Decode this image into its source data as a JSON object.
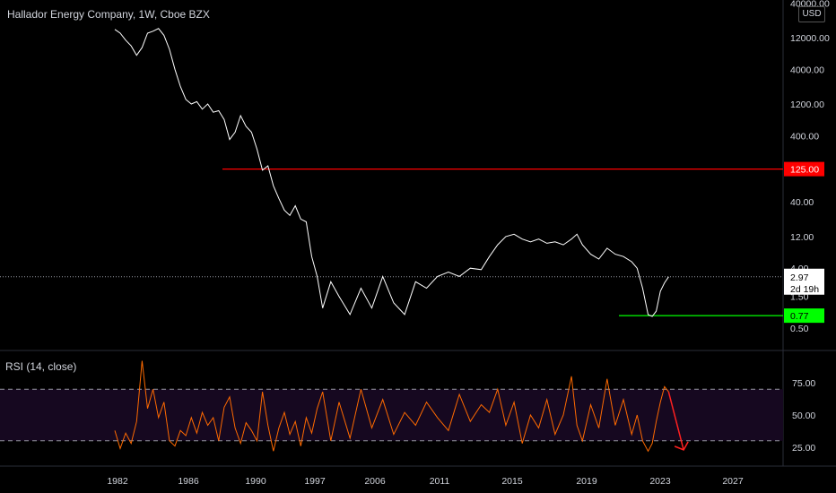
{
  "title": "Hallador Energy Company, 1W, Cboe BZX",
  "rsi_label": "RSI (14, close)",
  "currency": "USD",
  "colors": {
    "background": "#000000",
    "price_line": "#ffffff",
    "resistance": "#ff0000",
    "support": "#00ff00",
    "rsi_line": "#ff6a00",
    "rsi_band": "#160820",
    "arrow": "#ff2020"
  },
  "chart_data": [
    {
      "type": "line",
      "name": "price",
      "scale": "log",
      "y_tick_labels": [
        "40000.00",
        "12000.00",
        "4000.00",
        "1200.00",
        "400.00",
        "125.00",
        "40.00",
        "12.00",
        "4.00",
        "2.97",
        "1.50",
        "0.77",
        "0.50"
      ],
      "x_tick_labels": [
        "1982",
        "1986",
        "1990",
        "1997",
        "2006",
        "2011",
        "2015",
        "2019",
        "2023",
        "2027"
      ],
      "current_price": "2.97",
      "countdown": "2d 19h",
      "levels": [
        {
          "label": "125.00",
          "value": 125,
          "color": "#ff0000"
        },
        {
          "label": "0.77",
          "value": 0.77,
          "color": "#00ff00"
        }
      ],
      "points": [
        [
          1981.8,
          16000
        ],
        [
          1982.2,
          14000
        ],
        [
          1982.6,
          11000
        ],
        [
          1983.0,
          9000
        ],
        [
          1983.4,
          6500
        ],
        [
          1983.8,
          8500
        ],
        [
          1984.2,
          14000
        ],
        [
          1984.6,
          15000
        ],
        [
          1985.0,
          16500
        ],
        [
          1985.4,
          13000
        ],
        [
          1985.8,
          8000
        ],
        [
          1986.2,
          4000
        ],
        [
          1986.6,
          2200
        ],
        [
          1987.0,
          1400
        ],
        [
          1987.4,
          1200
        ],
        [
          1987.8,
          1300
        ],
        [
          1988.2,
          1000
        ],
        [
          1988.6,
          1200
        ],
        [
          1989.0,
          900
        ],
        [
          1989.4,
          950
        ],
        [
          1989.8,
          700
        ],
        [
          1990.2,
          350
        ],
        [
          1990.6,
          450
        ],
        [
          1991.0,
          800
        ],
        [
          1991.4,
          550
        ],
        [
          1991.8,
          450
        ],
        [
          1992.2,
          250
        ],
        [
          1992.6,
          120
        ],
        [
          1993.0,
          140
        ],
        [
          1993.4,
          70
        ],
        [
          1993.8,
          45
        ],
        [
          1994.2,
          30
        ],
        [
          1994.6,
          25
        ],
        [
          1995.0,
          35
        ],
        [
          1995.4,
          22
        ],
        [
          1995.8,
          20
        ],
        [
          1996.2,
          6
        ],
        [
          1996.6,
          3
        ],
        [
          1997.0,
          1.0
        ],
        [
          1997.6,
          2.5
        ],
        [
          1998.2,
          1.5
        ],
        [
          1999.0,
          0.8
        ],
        [
          1999.8,
          2.0
        ],
        [
          2000.6,
          1.0
        ],
        [
          2001.4,
          3.0
        ],
        [
          2002.2,
          1.2
        ],
        [
          2003.0,
          0.8
        ],
        [
          2003.8,
          2.5
        ],
        [
          2004.6,
          2.0
        ],
        [
          2005.4,
          3.0
        ],
        [
          2006.2,
          3.5
        ],
        [
          2007.0,
          3.0
        ],
        [
          2007.8,
          4.0
        ],
        [
          2008.6,
          3.8
        ],
        [
          2009.2,
          6.0
        ],
        [
          2009.8,
          9.0
        ],
        [
          2010.4,
          12.0
        ],
        [
          2011.0,
          13.0
        ],
        [
          2011.6,
          11.0
        ],
        [
          2012.2,
          10.0
        ],
        [
          2012.8,
          11.0
        ],
        [
          2013.4,
          9.5
        ],
        [
          2014.0,
          10.0
        ],
        [
          2014.6,
          9.0
        ],
        [
          2015.2,
          11.0
        ],
        [
          2015.6,
          13.0
        ],
        [
          2016.0,
          9.0
        ],
        [
          2016.6,
          6.5
        ],
        [
          2017.2,
          5.5
        ],
        [
          2017.8,
          8.0
        ],
        [
          2018.4,
          6.5
        ],
        [
          2019.0,
          6.0
        ],
        [
          2019.6,
          5.0
        ],
        [
          2020.0,
          4.0
        ],
        [
          2020.4,
          2.0
        ],
        [
          2020.8,
          0.8
        ],
        [
          2021.1,
          0.75
        ],
        [
          2021.4,
          0.9
        ],
        [
          2021.7,
          1.8
        ],
        [
          2022.0,
          2.4
        ],
        [
          2022.3,
          2.97
        ]
      ]
    },
    {
      "type": "line",
      "name": "RSI",
      "y_tick_labels": [
        "75.00",
        "50.00",
        "25.00"
      ],
      "ylim": [
        0,
        100
      ],
      "bands": [
        70,
        30
      ],
      "points": [
        [
          1981.8,
          38
        ],
        [
          1982.2,
          24
        ],
        [
          1982.6,
          36
        ],
        [
          1983.0,
          28
        ],
        [
          1983.4,
          45
        ],
        [
          1983.8,
          92
        ],
        [
          1984.2,
          55
        ],
        [
          1984.6,
          70
        ],
        [
          1985.0,
          48
        ],
        [
          1985.4,
          60
        ],
        [
          1985.8,
          30
        ],
        [
          1986.2,
          26
        ],
        [
          1986.6,
          38
        ],
        [
          1987.0,
          34
        ],
        [
          1987.4,
          48
        ],
        [
          1987.8,
          36
        ],
        [
          1988.2,
          52
        ],
        [
          1988.6,
          42
        ],
        [
          1989.0,
          48
        ],
        [
          1989.4,
          30
        ],
        [
          1989.8,
          56
        ],
        [
          1990.2,
          64
        ],
        [
          1990.6,
          40
        ],
        [
          1991.0,
          28
        ],
        [
          1991.4,
          44
        ],
        [
          1991.8,
          38
        ],
        [
          1992.2,
          30
        ],
        [
          1992.6,
          68
        ],
        [
          1993.0,
          42
        ],
        [
          1993.4,
          22
        ],
        [
          1993.8,
          40
        ],
        [
          1994.2,
          52
        ],
        [
          1994.6,
          35
        ],
        [
          1995.0,
          45
        ],
        [
          1995.4,
          26
        ],
        [
          1995.8,
          48
        ],
        [
          1996.2,
          36
        ],
        [
          1996.6,
          55
        ],
        [
          1997.0,
          68
        ],
        [
          1997.6,
          30
        ],
        [
          1998.2,
          60
        ],
        [
          1999.0,
          32
        ],
        [
          1999.8,
          70
        ],
        [
          2000.6,
          40
        ],
        [
          2001.4,
          62
        ],
        [
          2002.2,
          35
        ],
        [
          2003.0,
          52
        ],
        [
          2003.8,
          42
        ],
        [
          2004.6,
          60
        ],
        [
          2005.4,
          48
        ],
        [
          2006.2,
          38
        ],
        [
          2007.0,
          66
        ],
        [
          2007.8,
          45
        ],
        [
          2008.6,
          58
        ],
        [
          2009.2,
          52
        ],
        [
          2009.8,
          70
        ],
        [
          2010.4,
          42
        ],
        [
          2011.0,
          60
        ],
        [
          2011.6,
          28
        ],
        [
          2012.2,
          50
        ],
        [
          2012.8,
          40
        ],
        [
          2013.4,
          62
        ],
        [
          2014.0,
          35
        ],
        [
          2014.6,
          50
        ],
        [
          2015.2,
          80
        ],
        [
          2015.6,
          42
        ],
        [
          2016.0,
          30
        ],
        [
          2016.6,
          58
        ],
        [
          2017.2,
          40
        ],
        [
          2017.8,
          78
        ],
        [
          2018.4,
          42
        ],
        [
          2019.0,
          62
        ],
        [
          2019.6,
          35
        ],
        [
          2020.0,
          50
        ],
        [
          2020.4,
          30
        ],
        [
          2020.8,
          22
        ],
        [
          2021.1,
          28
        ],
        [
          2021.4,
          45
        ],
        [
          2021.7,
          60
        ],
        [
          2022.0,
          72
        ],
        [
          2022.3,
          68
        ]
      ],
      "arrow": {
        "from": [
          2022.3,
          68
        ],
        "to": [
          2023.4,
          23
        ]
      }
    }
  ]
}
